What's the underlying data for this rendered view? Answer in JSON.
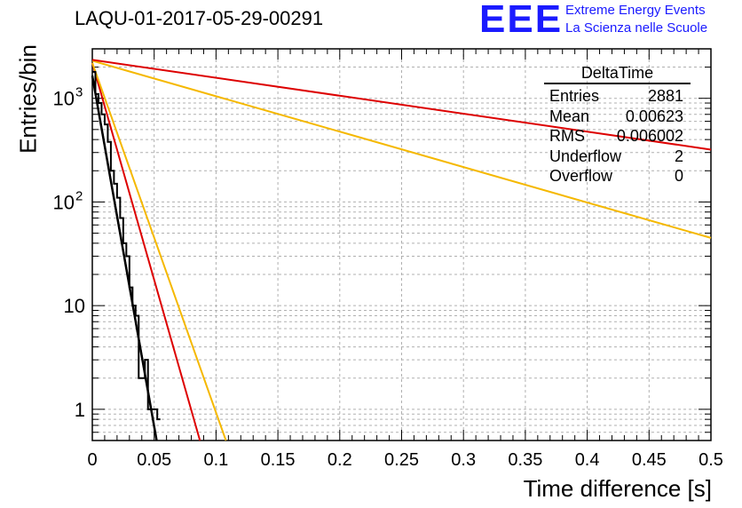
{
  "run_label": "LAQU-01-2017-05-29-00291",
  "logo": {
    "mark": "EEE",
    "line1": "Extreme Energy Events",
    "line2": "La Scienza nelle Scuole"
  },
  "stats_box": {
    "title": "DeltaTime",
    "rows": [
      {
        "label": "Entries",
        "value": "2881"
      },
      {
        "label": "Mean",
        "value": "0.00623"
      },
      {
        "label": "RMS",
        "value": "0.006002"
      },
      {
        "label": "Underflow",
        "value": "2"
      },
      {
        "label": "Overflow",
        "value": "0"
      }
    ]
  },
  "colors": {
    "histogram": "#000000",
    "red": "#dd0000",
    "orange": "#f5b800",
    "grid": "#b0b0b0"
  },
  "chart_data": {
    "type": "line",
    "xlabel": "Time difference [s]",
    "ylabel": "Entries/bin",
    "xlim": [
      0,
      0.5
    ],
    "ylim": [
      0.5,
      3000
    ],
    "yscale": "log",
    "x_ticks": [
      "0",
      "0.05",
      "0.1",
      "0.15",
      "0.2",
      "0.25",
      "0.3",
      "0.35",
      "0.4",
      "0.45",
      "0.5"
    ],
    "y_ticks": [
      {
        "value": 1,
        "label": "1"
      },
      {
        "value": 10,
        "label": "10"
      },
      {
        "value": 100,
        "label": "10",
        "exp": "2"
      },
      {
        "value": 1000,
        "label": "10",
        "exp": "3"
      }
    ],
    "grid": true,
    "histogram": {
      "name": "DeltaTime",
      "bin_width": 0.0025,
      "bin_edges_start": 0,
      "counts": [
        1800,
        1100,
        900,
        700,
        560,
        380,
        200,
        150,
        110,
        70,
        40,
        30,
        15,
        10,
        8,
        2,
        2,
        3,
        1,
        1,
        1,
        0.8
      ]
    },
    "series": [
      {
        "name": "fit-black",
        "color": "#000000",
        "x": [
          0,
          0.052
        ],
        "y": [
          1650,
          0.5
        ]
      },
      {
        "name": "fit-red-steep",
        "color": "#dd0000",
        "x": [
          0,
          0.087
        ],
        "y": [
          2200,
          0.5
        ]
      },
      {
        "name": "fit-orange-steep",
        "color": "#f5b800",
        "x": [
          0,
          0.108
        ],
        "y": [
          2200,
          0.5
        ]
      },
      {
        "name": "fit-orange-shallow",
        "color": "#f5b800",
        "x": [
          0,
          0.5
        ],
        "y": [
          2300,
          45
        ]
      },
      {
        "name": "fit-red-shallow",
        "color": "#dd0000",
        "x": [
          0,
          0.5
        ],
        "y": [
          2350,
          320
        ]
      }
    ]
  }
}
